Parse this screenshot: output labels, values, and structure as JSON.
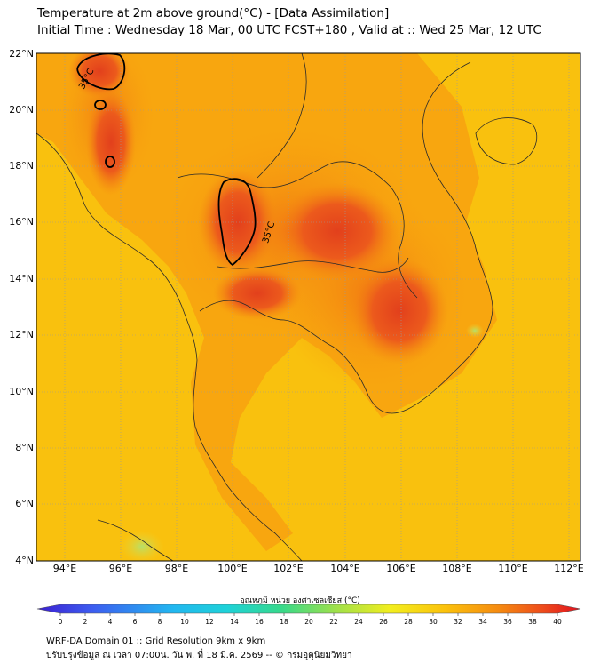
{
  "header": {
    "title_line1": "Temperature at 2m above ground(°C) - [Data Assimilation]",
    "title_line2": "Initial Time : Wednesday 18 Mar, 00 UTC FCST+180 , Valid at :: Wed 25 Mar, 12 UTC"
  },
  "map": {
    "lat_labels": [
      "22°N",
      "20°N",
      "18°N",
      "16°N",
      "14°N",
      "12°N",
      "10°N",
      "8°N",
      "6°N",
      "4°N"
    ],
    "lon_labels": [
      "94°E",
      "96°E",
      "98°E",
      "100°E",
      "102°E",
      "104°E",
      "106°E",
      "108°E",
      "110°E",
      "112°E"
    ],
    "contour_labels": [
      "35°C",
      "35°C"
    ],
    "colors": {
      "hot": "#e8471c",
      "warm": "#f58a10",
      "mild": "#fbb30d",
      "sea": "#f9c10e"
    }
  },
  "colorbar": {
    "label": "อุณหภูมิ หน่วย องศาเซลเซียส (°C)",
    "ticks": [
      "0",
      "2",
      "4",
      "6",
      "8",
      "10",
      "12",
      "14",
      "16",
      "18",
      "20",
      "22",
      "24",
      "26",
      "28",
      "30",
      "32",
      "34",
      "36",
      "38",
      "40"
    ]
  },
  "footer": {
    "line1": "WRF-DA Domain 01 :: Grid Resolution 9km x 9km",
    "line2": "ปรับปรุงข้อมูล ณ เวลา 07:00น. วัน พ. ที่ 18 มี.ค. 2569 -- © กรมอุตุนิยมวิทยา"
  }
}
